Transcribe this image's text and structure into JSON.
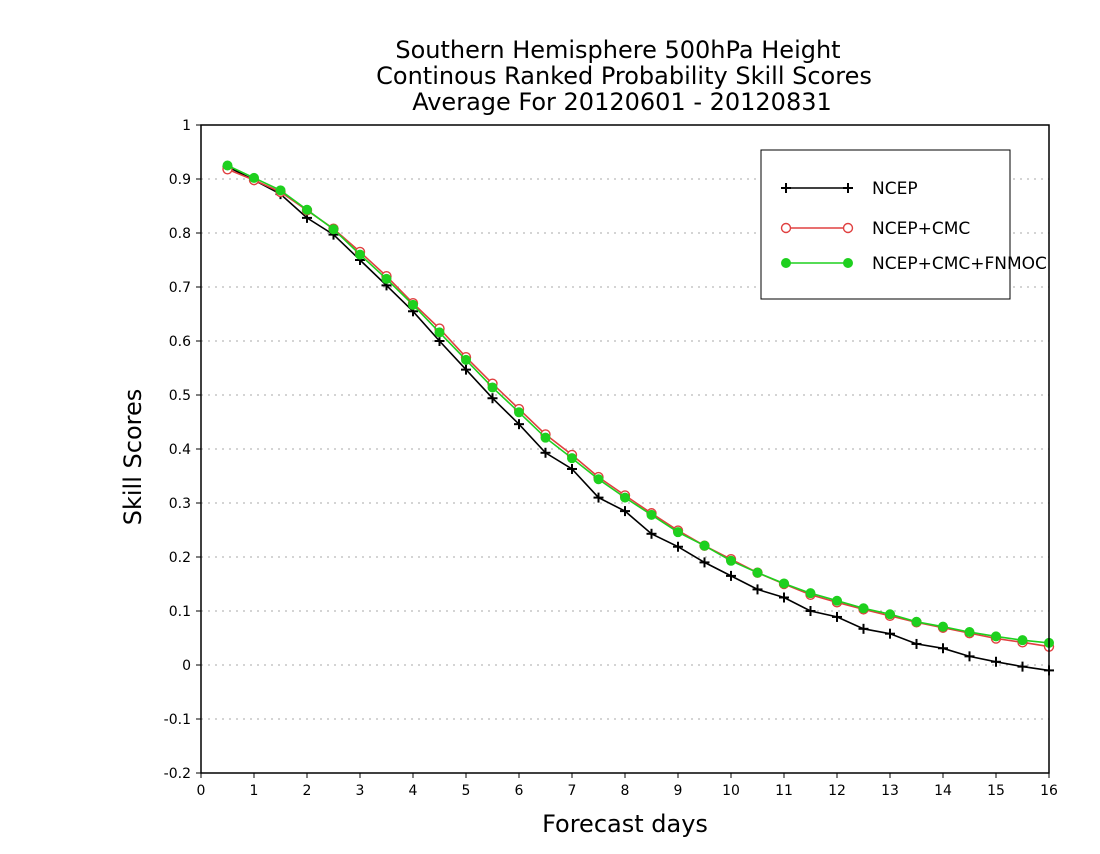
{
  "chart_data": {
    "type": "line",
    "title": [
      "Southern Hemisphere 500hPa Height",
      "Continous Ranked Probability Skill Scores",
      "Average For 20120601 - 20120831"
    ],
    "xlabel": "Forecast days",
    "ylabel": "Skill Scores",
    "xlim": [
      0,
      16
    ],
    "ylim": [
      -0.2,
      1
    ],
    "xticks": [
      0,
      1,
      2,
      3,
      4,
      5,
      6,
      7,
      8,
      9,
      10,
      11,
      12,
      13,
      14,
      15,
      16
    ],
    "yticks": [
      -0.2,
      -0.1,
      0,
      0.1,
      0.2,
      0.3,
      0.4,
      0.5,
      0.6,
      0.7,
      0.8,
      0.9,
      1
    ],
    "ytick_labels": [
      "-0.2",
      "-0.1",
      "0",
      "0.1",
      "0.2",
      "0.3",
      "0.4",
      "0.5",
      "0.6",
      "0.7",
      "0.8",
      "0.9",
      "1"
    ],
    "grid": "horizontal dotted",
    "legend_position": "top-right",
    "x": [
      0.5,
      1,
      1.5,
      2,
      2.5,
      3,
      3.5,
      4,
      4.5,
      5,
      5.5,
      6,
      6.5,
      7,
      7.5,
      8,
      8.5,
      9,
      9.5,
      10,
      10.5,
      11,
      11.5,
      12,
      12.5,
      13,
      13.5,
      14,
      14.5,
      15,
      15.5,
      16
    ],
    "series": [
      {
        "name": "NCEP",
        "color": "#000000",
        "marker": "plus",
        "values": [
          0.923,
          0.898,
          0.872,
          0.828,
          0.797,
          0.75,
          0.703,
          0.655,
          0.6,
          0.547,
          0.494,
          0.446,
          0.393,
          0.363,
          0.31,
          0.285,
          0.243,
          0.219,
          0.19,
          0.165,
          0.14,
          0.125,
          0.1,
          0.089,
          0.067,
          0.058,
          0.039,
          0.031,
          0.016,
          0.006,
          -0.003,
          -0.01
        ]
      },
      {
        "name": "NCEP+CMC",
        "color": "#e04040",
        "marker": "open-circle",
        "values": [
          0.918,
          0.898,
          0.876,
          0.842,
          0.808,
          0.765,
          0.72,
          0.67,
          0.623,
          0.57,
          0.521,
          0.474,
          0.427,
          0.389,
          0.348,
          0.314,
          0.281,
          0.249,
          0.221,
          0.196,
          0.171,
          0.15,
          0.13,
          0.116,
          0.103,
          0.091,
          0.079,
          0.069,
          0.059,
          0.049,
          0.042,
          0.034
        ]
      },
      {
        "name": "NCEP+CMC+FNMOC",
        "color": "#1ed01e",
        "marker": "filled-circle",
        "values": [
          0.925,
          0.902,
          0.879,
          0.843,
          0.807,
          0.76,
          0.715,
          0.667,
          0.616,
          0.565,
          0.514,
          0.468,
          0.421,
          0.383,
          0.344,
          0.31,
          0.278,
          0.246,
          0.221,
          0.193,
          0.171,
          0.151,
          0.133,
          0.119,
          0.105,
          0.094,
          0.08,
          0.071,
          0.061,
          0.053,
          0.046,
          0.041
        ]
      }
    ]
  }
}
